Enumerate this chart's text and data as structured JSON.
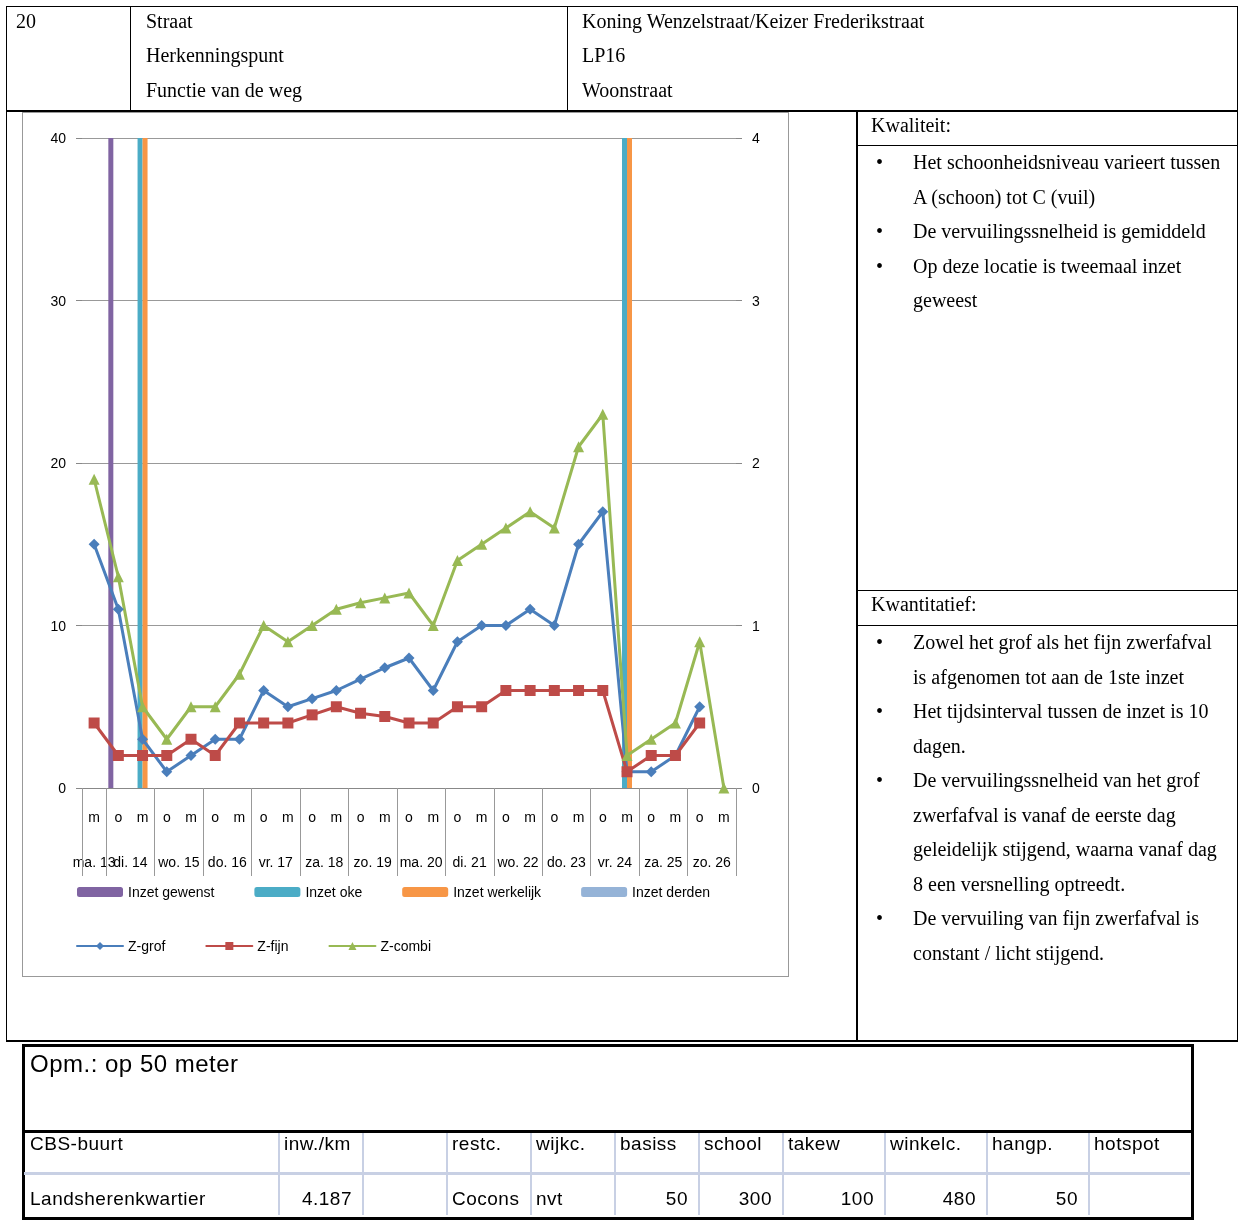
{
  "chart_data": {
    "type": "line",
    "categories": [
      "m",
      "o",
      "m",
      "o",
      "m",
      "o",
      "m",
      "o",
      "m",
      "o",
      "m",
      "o",
      "m",
      "o",
      "m",
      "o",
      "m",
      "o",
      "m",
      "o",
      "m",
      "o",
      "m",
      "o",
      "m",
      "o",
      "m"
    ],
    "series": [
      {
        "name": "Inzet gewenst",
        "type": "bar",
        "axis": "y2",
        "color": "#8064a2",
        "values": [
          null,
          4,
          null,
          null,
          null,
          null,
          null,
          null,
          null,
          null,
          null,
          null,
          null,
          null,
          null,
          null,
          null,
          null,
          null,
          null,
          null,
          null,
          null,
          null,
          null,
          null,
          null
        ]
      },
      {
        "name": "Inzet oke",
        "type": "bar",
        "axis": "y2",
        "color": "#4bacc6",
        "values": [
          null,
          null,
          4,
          null,
          null,
          null,
          null,
          null,
          null,
          null,
          null,
          null,
          null,
          null,
          null,
          null,
          null,
          null,
          null,
          null,
          null,
          null,
          4,
          null,
          null,
          null,
          null
        ]
      },
      {
        "name": "Inzet werkelijk",
        "type": "bar",
        "axis": "y2",
        "color": "#f79646",
        "values": [
          null,
          null,
          4,
          null,
          null,
          null,
          null,
          null,
          null,
          null,
          null,
          null,
          null,
          null,
          null,
          null,
          null,
          null,
          null,
          null,
          null,
          null,
          4,
          null,
          null,
          null,
          null
        ]
      },
      {
        "name": "Inzet derden",
        "type": "bar",
        "axis": "y2",
        "color": "#95b3d7",
        "values": [
          null,
          null,
          null,
          null,
          null,
          null,
          null,
          null,
          null,
          null,
          null,
          null,
          null,
          null,
          null,
          null,
          null,
          null,
          null,
          null,
          null,
          null,
          null,
          null,
          null,
          null,
          null
        ]
      },
      {
        "name": "Z-grof",
        "color": "#4a7ebb",
        "marker": "diamond",
        "values": [
          15,
          11,
          3,
          1,
          2,
          3,
          3,
          6,
          5,
          5.5,
          6,
          6.7,
          7.4,
          8,
          6,
          9,
          10,
          10,
          11,
          10,
          15,
          17,
          1,
          1,
          2,
          5,
          null
        ]
      },
      {
        "name": "Z-fijn",
        "color": "#be4b48",
        "marker": "square",
        "values": [
          4,
          2,
          2,
          2,
          3,
          2,
          4,
          4,
          4,
          4.5,
          5,
          4.6,
          4.4,
          4,
          4,
          5,
          5,
          6,
          6,
          6,
          6,
          6,
          1,
          2,
          2,
          4,
          null
        ]
      },
      {
        "name": "Z-combi",
        "color": "#98b954",
        "marker": "triangle",
        "values": [
          19,
          13,
          5,
          3,
          5,
          5,
          7,
          10,
          9,
          10,
          11,
          11.4,
          11.7,
          12,
          10,
          14,
          15,
          16,
          17,
          16,
          21,
          23,
          2,
          3,
          4,
          9,
          0
        ]
      }
    ],
    "ylim": [
      0,
      40
    ],
    "yticks": [
      0,
      10,
      20,
      30,
      40
    ],
    "y2lim": [
      0,
      4
    ],
    "y2ticks": [
      0,
      1,
      2,
      3,
      4
    ],
    "grid": "y",
    "legend": "bottom",
    "line_style": "solid",
    "annotations": [
      "ma. 13",
      "di. 14",
      "wo. 15",
      "do. 16",
      "vr. 17",
      "za. 18",
      "zo. 19",
      "ma. 20",
      "di. 21",
      "wo. 22",
      "do. 23",
      "vr. 24",
      "za. 25",
      "zo. 26",
      "20",
      "Straat",
      "Herkenningspunt",
      "Functie van de weg",
      "Koning Wenzelstraat/Keizer Frederikstraat",
      "LP16",
      "Woonstraat",
      "Kwaliteit:",
      "• Het schoonheidsniveau varieert tussen A (schoon) tot C (vuil)",
      "• De vervuilingssnelheid is gemiddeld",
      "• Op deze locatie is tweemaal inzet geweest",
      "Kwantitatief:",
      "• Zowel het grof als het fijn zwerfafval is afgenomen tot aan de 1ste inzet",
      "• Het tijdsinterval tussen de inzet is 10 dagen.",
      "• De vervuilingssnelheid van het grof zwerfafval is vanaf de eerste dag geleidelijk stijgend, waarna vanaf dag 8 een versnelling optreedt.",
      "• De vervuiling van fijn zwerfafval is constant / licht stijgend.",
      "Opm.: op 50 meter",
      "CBS-buurt",
      "inw./km",
      "restc.",
      "wijkc.",
      "basiss",
      "school",
      "takew",
      "winkelc.",
      "hangp.",
      "hotspot",
      "Landsherenkwartier",
      "4.187",
      "Cocons",
      "nvt",
      "50",
      "300",
      "100",
      "480",
      "50"
    ]
  }
}
